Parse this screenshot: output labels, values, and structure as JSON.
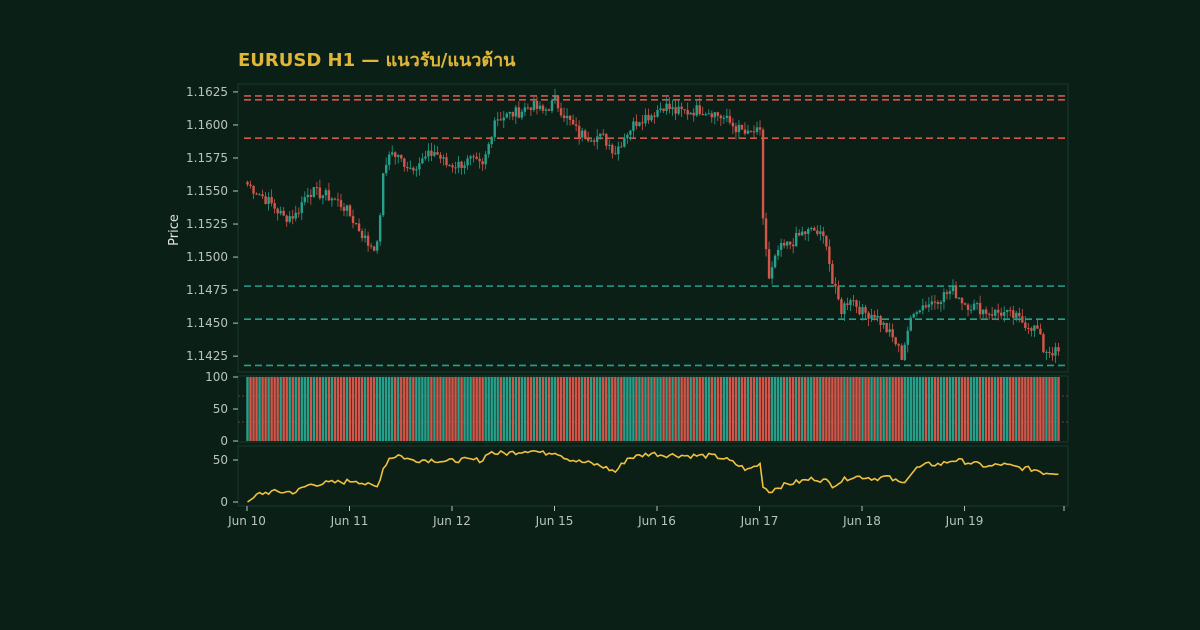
{
  "chart_data": {
    "type": "candlestick",
    "title": "EURUSD H1 — แนวรับ/แนวต้าน",
    "ylabel": "Price",
    "xlabel": "",
    "ylim": [
      1.1413,
      1.1631
    ],
    "grid": false,
    "yticks": [
      1.1425,
      1.145,
      1.1475,
      1.15,
      1.1525,
      1.155,
      1.1575,
      1.16,
      1.1625
    ],
    "x_ticks": [
      "Jun 10",
      "Jun 11",
      "Jun 12",
      "Jun 15",
      "Jun 16",
      "Jun 17",
      "Jun 18",
      "Jun 19"
    ],
    "resistance_levels": [
      1.1622,
      1.1619,
      1.159
    ],
    "support_levels": [
      1.1478,
      1.1453,
      1.1418
    ],
    "close_anchors": [
      [
        0,
        1.1555
      ],
      [
        4,
        1.1548
      ],
      [
        8,
        1.154
      ],
      [
        12,
        1.153
      ],
      [
        16,
        1.1532
      ],
      [
        20,
        1.155
      ],
      [
        24,
        1.1548
      ],
      [
        28,
        1.1545
      ],
      [
        32,
        1.1538
      ],
      [
        36,
        1.1525
      ],
      [
        40,
        1.151
      ],
      [
        43,
        1.1508
      ],
      [
        45,
        1.156
      ],
      [
        47,
        1.158
      ],
      [
        50,
        1.1575
      ],
      [
        54,
        1.1568
      ],
      [
        58,
        1.1573
      ],
      [
        62,
        1.158
      ],
      [
        66,
        1.157
      ],
      [
        70,
        1.157
      ],
      [
        74,
        1.1573
      ],
      [
        78,
        1.1568
      ],
      [
        80,
        1.1585
      ],
      [
        82,
        1.1605
      ],
      [
        86,
        1.1607
      ],
      [
        90,
        1.161
      ],
      [
        94,
        1.1615
      ],
      [
        98,
        1.161
      ],
      [
        102,
        1.1618
      ],
      [
        106,
        1.1605
      ],
      [
        110,
        1.1593
      ],
      [
        114,
        1.1592
      ],
      [
        118,
        1.159
      ],
      [
        122,
        1.158
      ],
      [
        126,
        1.1595
      ],
      [
        130,
        1.1605
      ],
      [
        134,
        1.1608
      ],
      [
        138,
        1.1615
      ],
      [
        142,
        1.161
      ],
      [
        146,
        1.161
      ],
      [
        150,
        1.1612
      ],
      [
        154,
        1.161
      ],
      [
        158,
        1.1605
      ],
      [
        162,
        1.1598
      ],
      [
        166,
        1.1592
      ],
      [
        168,
        1.1595
      ],
      [
        170,
        1.1593
      ],
      [
        171,
        1.153
      ],
      [
        173,
        1.1482
      ],
      [
        176,
        1.1505
      ],
      [
        180,
        1.151
      ],
      [
        184,
        1.1518
      ],
      [
        188,
        1.152
      ],
      [
        192,
        1.1512
      ],
      [
        194,
        1.148
      ],
      [
        197,
        1.146
      ],
      [
        200,
        1.147
      ],
      [
        204,
        1.1458
      ],
      [
        208,
        1.1457
      ],
      [
        212,
        1.1445
      ],
      [
        215,
        1.1435
      ],
      [
        217,
        1.1425
      ],
      [
        219,
        1.1445
      ],
      [
        222,
        1.1462
      ],
      [
        226,
        1.1465
      ],
      [
        230,
        1.147
      ],
      [
        234,
        1.1475
      ],
      [
        238,
        1.1465
      ],
      [
        242,
        1.1462
      ],
      [
        246,
        1.1458
      ],
      [
        250,
        1.1458
      ],
      [
        254,
        1.1455
      ],
      [
        258,
        1.145
      ],
      [
        262,
        1.1445
      ],
      [
        264,
        1.143
      ],
      [
        268,
        1.1428
      ]
    ],
    "rsi_anchors": [
      [
        0,
        0
      ],
      [
        4,
        10
      ],
      [
        8,
        12
      ],
      [
        12,
        12
      ],
      [
        16,
        12
      ],
      [
        20,
        20
      ],
      [
        24,
        22
      ],
      [
        28,
        23
      ],
      [
        32,
        24
      ],
      [
        36,
        26
      ],
      [
        40,
        20
      ],
      [
        43,
        18
      ],
      [
        45,
        40
      ],
      [
        47,
        52
      ],
      [
        50,
        56
      ],
      [
        54,
        50
      ],
      [
        58,
        50
      ],
      [
        62,
        50
      ],
      [
        66,
        48
      ],
      [
        70,
        50
      ],
      [
        74,
        50
      ],
      [
        78,
        50
      ],
      [
        80,
        60
      ],
      [
        82,
        58
      ],
      [
        86,
        58
      ],
      [
        90,
        60
      ],
      [
        94,
        62
      ],
      [
        98,
        58
      ],
      [
        102,
        60
      ],
      [
        106,
        52
      ],
      [
        110,
        48
      ],
      [
        114,
        46
      ],
      [
        118,
        42
      ],
      [
        122,
        36
      ],
      [
        126,
        52
      ],
      [
        130,
        55
      ],
      [
        134,
        58
      ],
      [
        138,
        56
      ],
      [
        142,
        56
      ],
      [
        146,
        55
      ],
      [
        150,
        55
      ],
      [
        154,
        55
      ],
      [
        158,
        52
      ],
      [
        162,
        45
      ],
      [
        166,
        38
      ],
      [
        168,
        42
      ],
      [
        170,
        45
      ],
      [
        171,
        20
      ],
      [
        173,
        12
      ],
      [
        176,
        18
      ],
      [
        180,
        22
      ],
      [
        184,
        25
      ],
      [
        188,
        28
      ],
      [
        192,
        25
      ],
      [
        194,
        20
      ],
      [
        197,
        25
      ],
      [
        200,
        30
      ],
      [
        204,
        30
      ],
      [
        208,
        28
      ],
      [
        212,
        30
      ],
      [
        215,
        25
      ],
      [
        217,
        22
      ],
      [
        219,
        30
      ],
      [
        222,
        40
      ],
      [
        226,
        45
      ],
      [
        230,
        45
      ],
      [
        234,
        50
      ],
      [
        238,
        48
      ],
      [
        242,
        45
      ],
      [
        246,
        42
      ],
      [
        250,
        45
      ],
      [
        254,
        42
      ],
      [
        258,
        40
      ],
      [
        262,
        38
      ],
      [
        264,
        35
      ],
      [
        268,
        35
      ]
    ]
  }
}
